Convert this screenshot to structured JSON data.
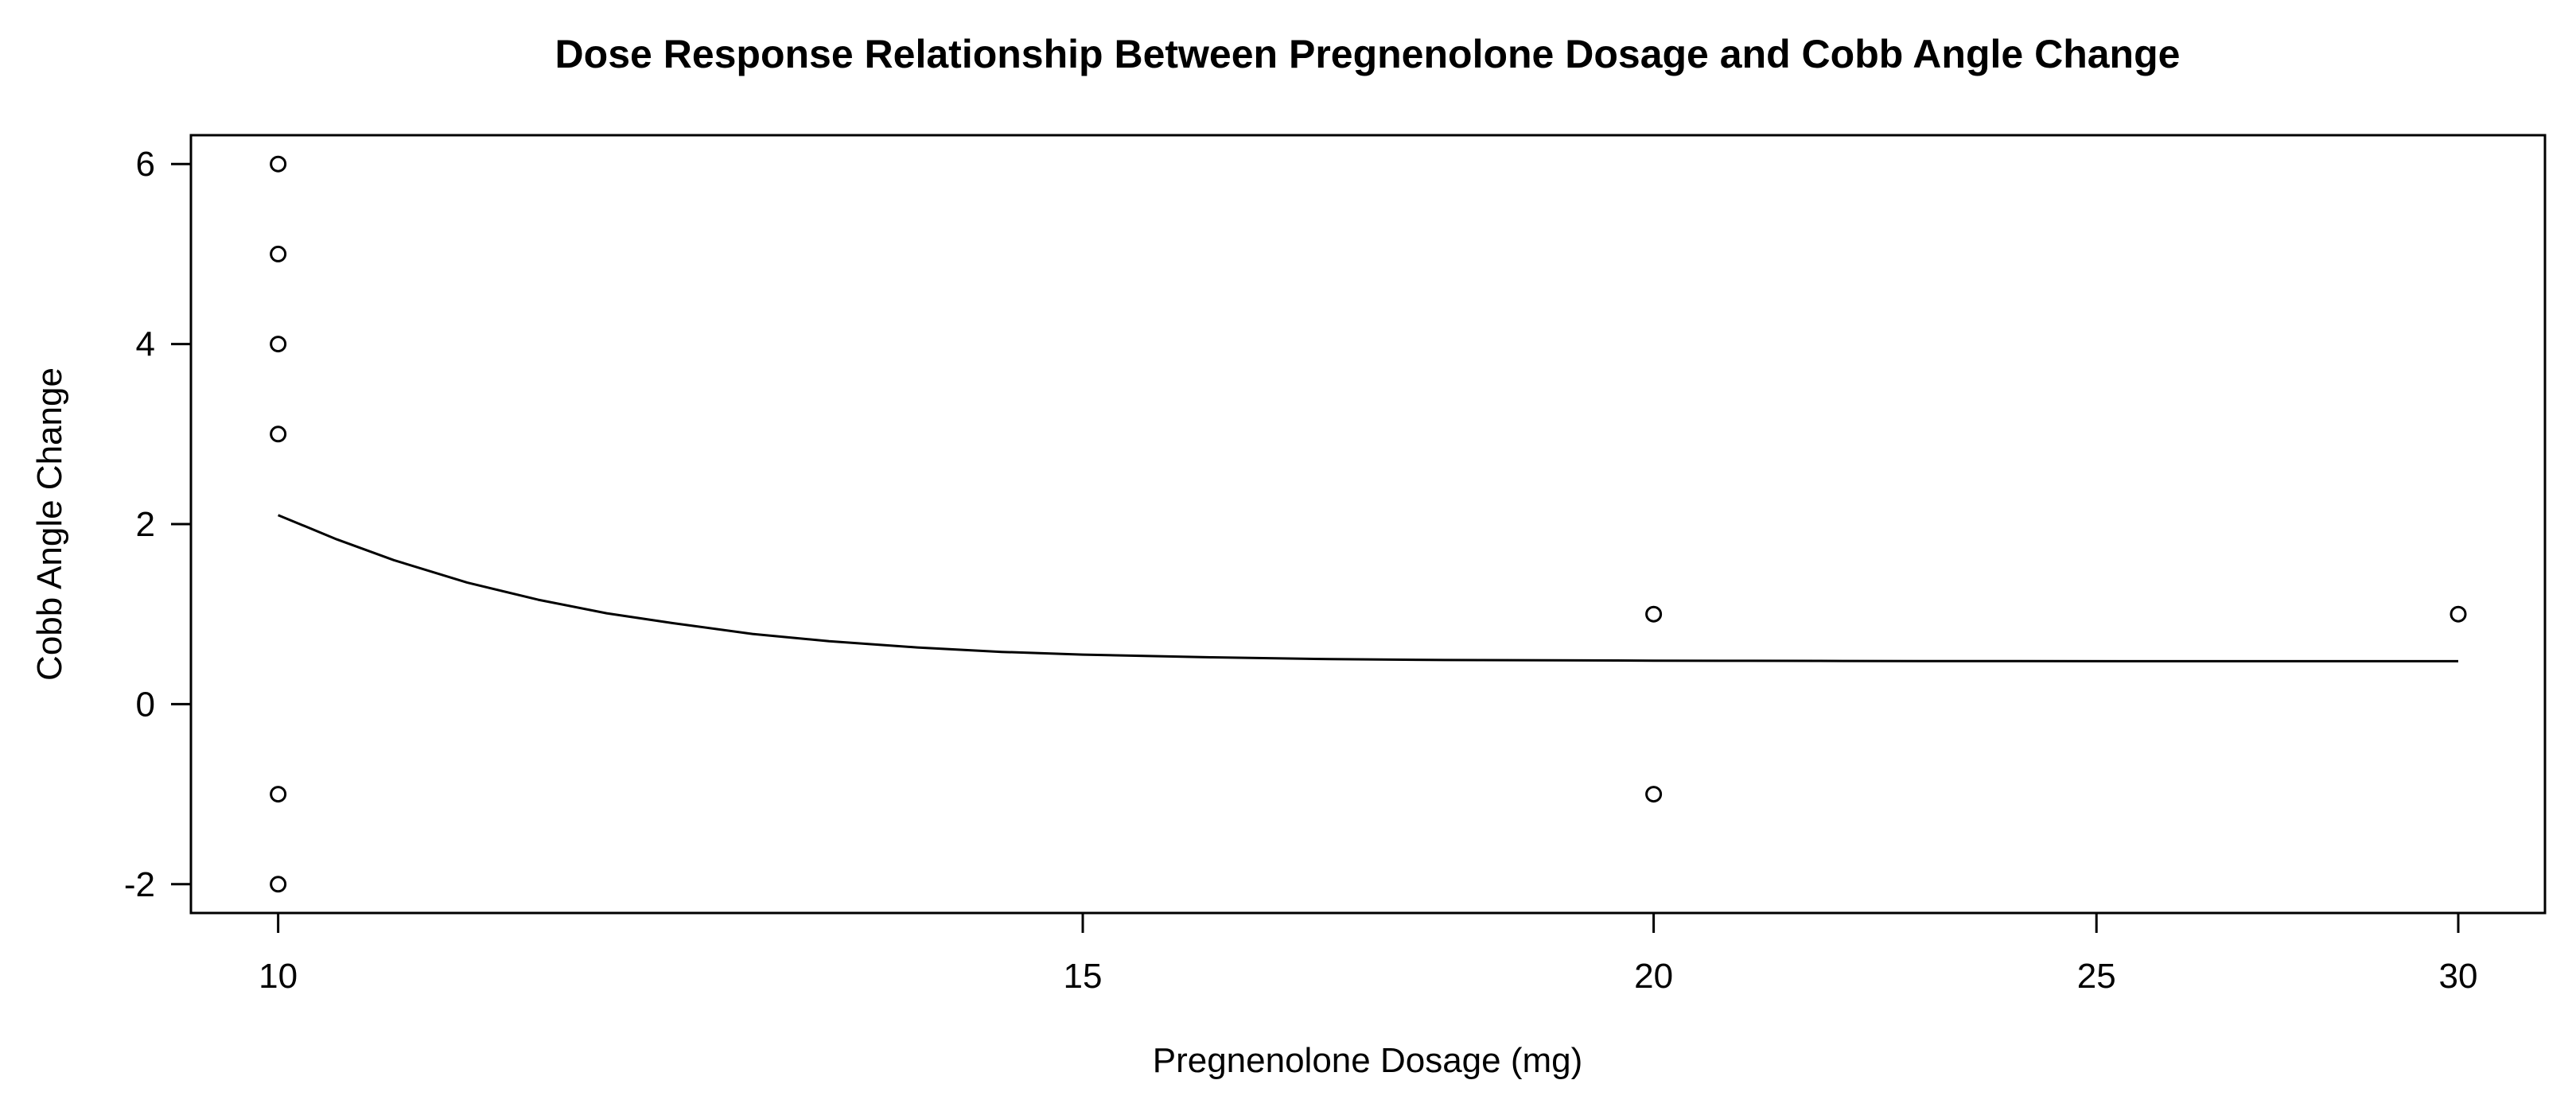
{
  "colors": {
    "foreground": "#000000",
    "background": "#ffffff"
  },
  "chart_data": {
    "type": "scatter",
    "title": "Dose Response Relationship Between Pregnenolone Dosage and Cobb Angle Change",
    "xlabel": "Pregnenolone Dosage (mg)",
    "ylabel": "Cobb Angle Change",
    "x_scale": "log",
    "grid": false,
    "legend": "none",
    "xlim": [
      9.57,
      31.34
    ],
    "ylim": [
      -2.32,
      6.32
    ],
    "x_ticks": [
      10,
      15,
      20,
      25,
      30
    ],
    "y_ticks": [
      -2,
      0,
      2,
      4,
      6
    ],
    "marker": {
      "shape": "open-circle",
      "color": "#000000"
    },
    "points": [
      [
        10,
        6
      ],
      [
        10,
        5
      ],
      [
        10,
        4
      ],
      [
        10,
        3
      ],
      [
        10,
        -1
      ],
      [
        10,
        -2
      ],
      [
        20,
        1
      ],
      [
        20,
        -1
      ],
      [
        30,
        1
      ]
    ],
    "fit_curve": {
      "name": "dose-response-fit",
      "color": "#000000",
      "points": [
        [
          10,
          2.1
        ],
        [
          10.3,
          1.83
        ],
        [
          10.6,
          1.6
        ],
        [
          11,
          1.35
        ],
        [
          11.4,
          1.16
        ],
        [
          11.8,
          1.01
        ],
        [
          12.2,
          0.9
        ],
        [
          12.7,
          0.78
        ],
        [
          13.2,
          0.7
        ],
        [
          13.8,
          0.63
        ],
        [
          14.4,
          0.58
        ],
        [
          15,
          0.55
        ],
        [
          16,
          0.52
        ],
        [
          17,
          0.5
        ],
        [
          18,
          0.49
        ],
        [
          19,
          0.487
        ],
        [
          20,
          0.483
        ],
        [
          21,
          0.481
        ],
        [
          22,
          0.48
        ],
        [
          24,
          0.478
        ],
        [
          26,
          0.477
        ],
        [
          28,
          0.477
        ],
        [
          30,
          0.477
        ]
      ]
    }
  }
}
